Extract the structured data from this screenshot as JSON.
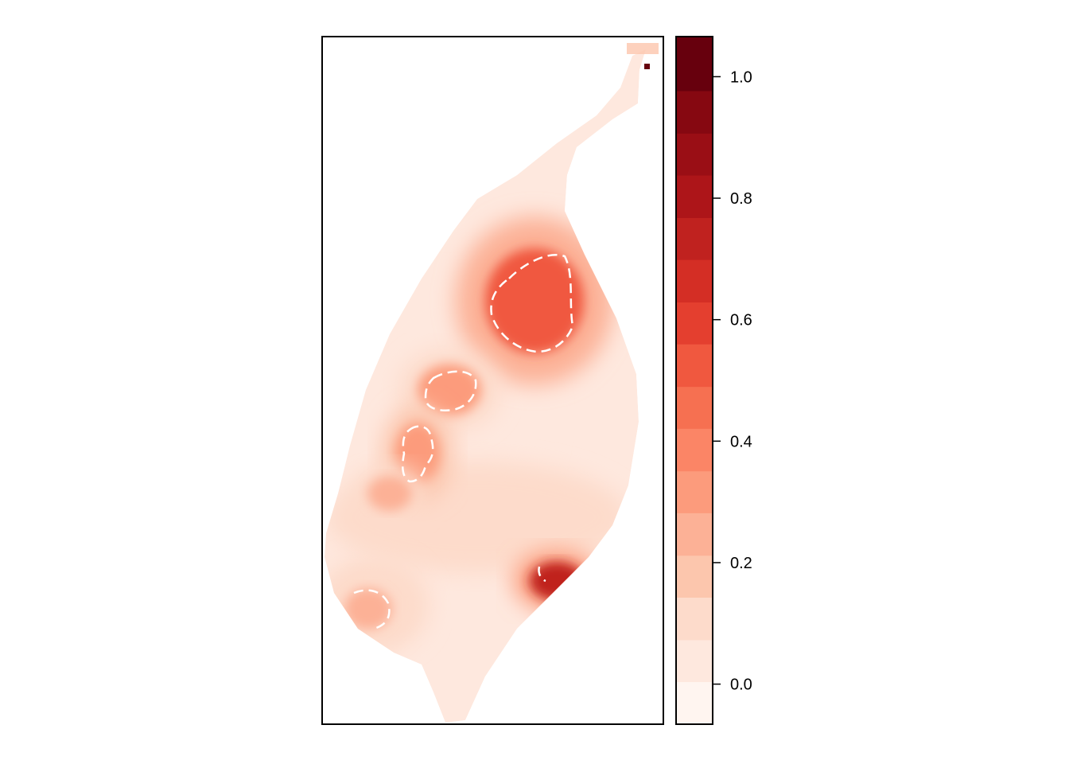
{
  "chart_data": {
    "type": "heatmap",
    "title": "",
    "xlabel": "",
    "ylabel": "",
    "grid": false,
    "legend": "colorbar-right",
    "colorbar": {
      "range": [
        -0.066,
        1.066
      ],
      "breaks": [
        -0.066,
        0.004,
        0.073,
        0.143,
        0.212,
        0.282,
        0.351,
        0.421,
        0.49,
        0.56,
        0.629,
        0.699,
        0.768,
        0.838,
        0.907,
        0.977,
        1.066
      ],
      "colors": [
        "#fff5f0",
        "#fee8de",
        "#fddbcb",
        "#fcc6ad",
        "#fcb196",
        "#fc9b7c",
        "#fb8566",
        "#f67051",
        "#f0583f",
        "#e43f2f",
        "#d42e25",
        "#c0221f",
        "#ad1519",
        "#9a0e15",
        "#860811",
        "#67000d"
      ],
      "ticks": [
        "0.0",
        "0.2",
        "0.4",
        "0.6",
        "0.8",
        "1.0"
      ],
      "tick_values": [
        0.0,
        0.2,
        0.4,
        0.6,
        0.8,
        1.0
      ]
    },
    "regions": [
      {
        "name": "base",
        "value": 0.03
      },
      {
        "name": "upper-right hotspot",
        "value": 0.55
      },
      {
        "name": "middle hotspot",
        "value": 0.3
      },
      {
        "name": "left-middle hotspot",
        "value": 0.35
      },
      {
        "name": "left-lower patch",
        "value": 0.22
      },
      {
        "name": "bottom-left hotspot",
        "value": 0.27
      },
      {
        "name": "bottom-right hotspot",
        "value": 0.75
      },
      {
        "name": "top-right point",
        "value": 1.04
      }
    ],
    "contour_color": "#ffffff",
    "contour_style": "dashed"
  }
}
